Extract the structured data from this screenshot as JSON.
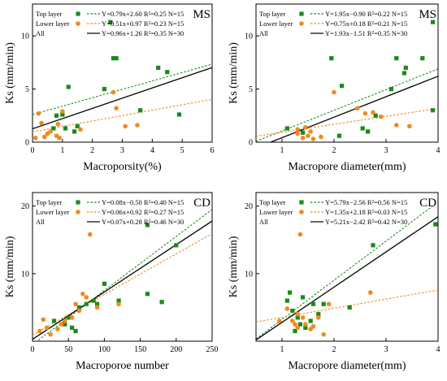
{
  "colors": {
    "top": "#1a8a1a",
    "lower": "#f08a1e",
    "all": "#000000"
  },
  "chart_data": [
    {
      "type": "scatter",
      "panel_label": "MS",
      "xlabel": "Macroporsity(%)",
      "ylabel": "Ks (mm/min)",
      "xlim": [
        0,
        6
      ],
      "ylim": [
        0,
        13
      ],
      "xticks": [
        0,
        1,
        2,
        3,
        4,
        5,
        6
      ],
      "yticks": [
        0,
        5,
        10
      ],
      "legend_position": "top",
      "series": [
        {
          "name": "Top layer",
          "marker": "square",
          "equation": "Y=0.79x+2.60  R²=0.25  N=15",
          "fit": [
            0.79,
            2.6
          ],
          "points": [
            [
              0.7,
              1.3
            ],
            [
              1.1,
              1.3
            ],
            [
              1.4,
              1.0
            ],
            [
              1.5,
              1.5
            ],
            [
              1.2,
              5.2
            ],
            [
              2.4,
              5.0
            ],
            [
              2.6,
              11.3
            ],
            [
              2.7,
              7.9
            ],
            [
              2.8,
              7.9
            ],
            [
              3.6,
              3.0
            ],
            [
              4.2,
              7.0
            ],
            [
              4.5,
              6.6
            ],
            [
              4.9,
              2.6
            ],
            [
              0.8,
              2.5
            ],
            [
              1.0,
              2.6
            ]
          ]
        },
        {
          "name": "Lower layer",
          "marker": "circle",
          "equation": "Y=0.51x+0.97  R²=0.23  N=15",
          "fit": [
            0.51,
            0.97
          ],
          "points": [
            [
              0.1,
              0.4
            ],
            [
              0.2,
              2.7
            ],
            [
              0.4,
              0.5
            ],
            [
              0.5,
              0.8
            ],
            [
              0.6,
              1.0
            ],
            [
              0.8,
              0.6
            ],
            [
              0.9,
              0.4
            ],
            [
              1.0,
              2.9
            ],
            [
              1.6,
              1.2
            ],
            [
              2.7,
              4.7
            ],
            [
              2.8,
              3.2
            ],
            [
              3.1,
              1.5
            ],
            [
              3.5,
              1.6
            ],
            [
              0.3,
              1.8
            ],
            [
              0.85,
              1.7
            ]
          ]
        },
        {
          "name": "All",
          "marker": "none",
          "equation": "Y=0.96x+1.26  R²=0.35  N=30",
          "fit": [
            0.96,
            1.26
          ],
          "points": []
        }
      ]
    },
    {
      "type": "scatter",
      "panel_label": "MS",
      "xlabel": "Macropore diameter(mm)",
      "ylabel": "Ks (mm/min)",
      "xlim": [
        0.5,
        4
      ],
      "ylim": [
        0,
        13
      ],
      "xticks": [
        1,
        2,
        3,
        4
      ],
      "yticks": [
        0,
        5,
        10
      ],
      "legend_position": "top",
      "series": [
        {
          "name": "Top layer",
          "marker": "square",
          "equation": "Y=1.95x−0.90  R²=0.22  N=15",
          "fit": [
            1.95,
            -0.9
          ],
          "points": [
            [
              1.1,
              1.3
            ],
            [
              1.4,
              0.9
            ],
            [
              1.95,
              7.9
            ],
            [
              2.15,
              5.3
            ],
            [
              2.55,
              1.3
            ],
            [
              2.65,
              1.0
            ],
            [
              2.8,
              2.5
            ],
            [
              3.1,
              5.0
            ],
            [
              3.2,
              7.9
            ],
            [
              3.35,
              6.5
            ],
            [
              3.38,
              7.0
            ],
            [
              3.7,
              7.9
            ],
            [
              3.9,
              11.3
            ],
            [
              3.9,
              3.0
            ],
            [
              2.1,
              0.6
            ]
          ]
        },
        {
          "name": "Lower layer",
          "marker": "circle",
          "equation": "Y=0.75x+0.18  R²=0.21  N=15",
          "fit": [
            0.75,
            0.18
          ],
          "points": [
            [
              1.3,
              0.8
            ],
            [
              1.4,
              0.4
            ],
            [
              1.5,
              0.6
            ],
            [
              1.55,
              1.0
            ],
            [
              1.6,
              0.3
            ],
            [
              1.75,
              0.5
            ],
            [
              2.0,
              4.7
            ],
            [
              2.45,
              3.2
            ],
            [
              2.6,
              2.7
            ],
            [
              2.75,
              2.8
            ],
            [
              3.2,
              1.6
            ],
            [
              3.45,
              1.5
            ],
            [
              1.45,
              1.4
            ],
            [
              2.9,
              2.4
            ],
            [
              1.3,
              1.2
            ]
          ]
        },
        {
          "name": "All",
          "marker": "none",
          "equation": "Y=1.93x−1.51  R²=0.35  N=30",
          "fit": [
            1.93,
            -1.51
          ],
          "points": []
        }
      ]
    },
    {
      "type": "scatter",
      "panel_label": "CD",
      "xlabel": "Macroporoe number",
      "ylabel": "Ks (mm/min)",
      "xlim": [
        0,
        250
      ],
      "ylim": [
        0,
        22
      ],
      "xticks": [
        0,
        50,
        100,
        150,
        200,
        250
      ],
      "yticks": [
        10,
        20
      ],
      "legend_position": "top",
      "series": [
        {
          "name": "Top layer",
          "marker": "square",
          "equation": "Y=0.08x−0.50  R²=0.40  N=15",
          "fit": [
            0.08,
            -0.5
          ],
          "points": [
            [
              30,
              3.0
            ],
            [
              45,
              2.5
            ],
            [
              55,
              2.0
            ],
            [
              60,
              1.5
            ],
            [
              65,
              5.0
            ],
            [
              75,
              5.5
            ],
            [
              85,
              6.0
            ],
            [
              100,
              8.5
            ],
            [
              120,
              6.0
            ],
            [
              160,
              17.2
            ],
            [
              160,
              7.0
            ],
            [
              180,
              5.8
            ],
            [
              200,
              14.2
            ],
            [
              50,
              3.5
            ],
            [
              90,
              5.5
            ]
          ]
        },
        {
          "name": "Lower layer",
          "marker": "circle",
          "equation": "Y=0.06x+0.92  R²=0.27  N=15",
          "fit": [
            0.06,
            0.92
          ],
          "points": [
            [
              10,
              1.5
            ],
            [
              15,
              3.2
            ],
            [
              20,
              2.0
            ],
            [
              25,
              1.0
            ],
            [
              40,
              2.5
            ],
            [
              45,
              3.0
            ],
            [
              55,
              3.5
            ],
            [
              60,
              5.5
            ],
            [
              65,
              4.5
            ],
            [
              70,
              7.0
            ],
            [
              75,
              6.5
            ],
            [
              80,
              15.8
            ],
            [
              90,
              5.0
            ],
            [
              120,
              5.5
            ],
            [
              35,
              1.8
            ]
          ]
        },
        {
          "name": "All",
          "marker": "none",
          "equation": "Y=0.07x+0.28  R²=0.46  N=30",
          "fit": [
            0.07,
            0.28
          ],
          "points": []
        }
      ]
    },
    {
      "type": "scatter",
      "panel_label": "CD",
      "xlabel": "Macropore diameter(mm)",
      "ylabel": "Ks (mm/min)",
      "xlim": [
        0.5,
        4
      ],
      "ylim": [
        0,
        22
      ],
      "xticks": [
        1,
        2,
        3,
        4
      ],
      "yticks": [
        10,
        20
      ],
      "legend_position": "top",
      "series": [
        {
          "name": "Top layer",
          "marker": "square",
          "equation": "Y=5.79x−2.56  R²=0.56  N=15",
          "fit": [
            5.79,
            -2.56
          ],
          "points": [
            [
              1.1,
              6.0
            ],
            [
              1.15,
              7.2
            ],
            [
              1.2,
              4.5
            ],
            [
              1.3,
              3.5
            ],
            [
              1.35,
              2.5
            ],
            [
              1.4,
              6.5
            ],
            [
              1.45,
              2.0
            ],
            [
              1.55,
              3.0
            ],
            [
              1.6,
              5.5
            ],
            [
              1.7,
              4.0
            ],
            [
              1.8,
              5.5
            ],
            [
              2.3,
              5.0
            ],
            [
              2.75,
              14.2
            ],
            [
              3.95,
              17.3
            ],
            [
              1.25,
              1.5
            ]
          ]
        },
        {
          "name": "Lower layer",
          "marker": "circle",
          "equation": "Y=1.35x+2.18  R²=0.03  N=15",
          "fit": [
            1.35,
            2.18
          ],
          "points": [
            [
              0.95,
              3.0
            ],
            [
              1.1,
              4.8
            ],
            [
              1.2,
              3.0
            ],
            [
              1.25,
              2.5
            ],
            [
              1.3,
              2.0
            ],
            [
              1.35,
              15.8
            ],
            [
              1.4,
              3.5
            ],
            [
              1.45,
              2.5
            ],
            [
              1.55,
              1.8
            ],
            [
              1.6,
              2.2
            ],
            [
              1.7,
              3.5
            ],
            [
              1.8,
              1.0
            ],
            [
              1.9,
              5.5
            ],
            [
              2.7,
              7.2
            ],
            [
              1.3,
              4.0
            ]
          ]
        },
        {
          "name": "All",
          "marker": "none",
          "equation": "Y=5.21x−2.42  R²=0.42  N=30",
          "fit": [
            5.21,
            -2.42
          ],
          "points": []
        }
      ]
    }
  ]
}
